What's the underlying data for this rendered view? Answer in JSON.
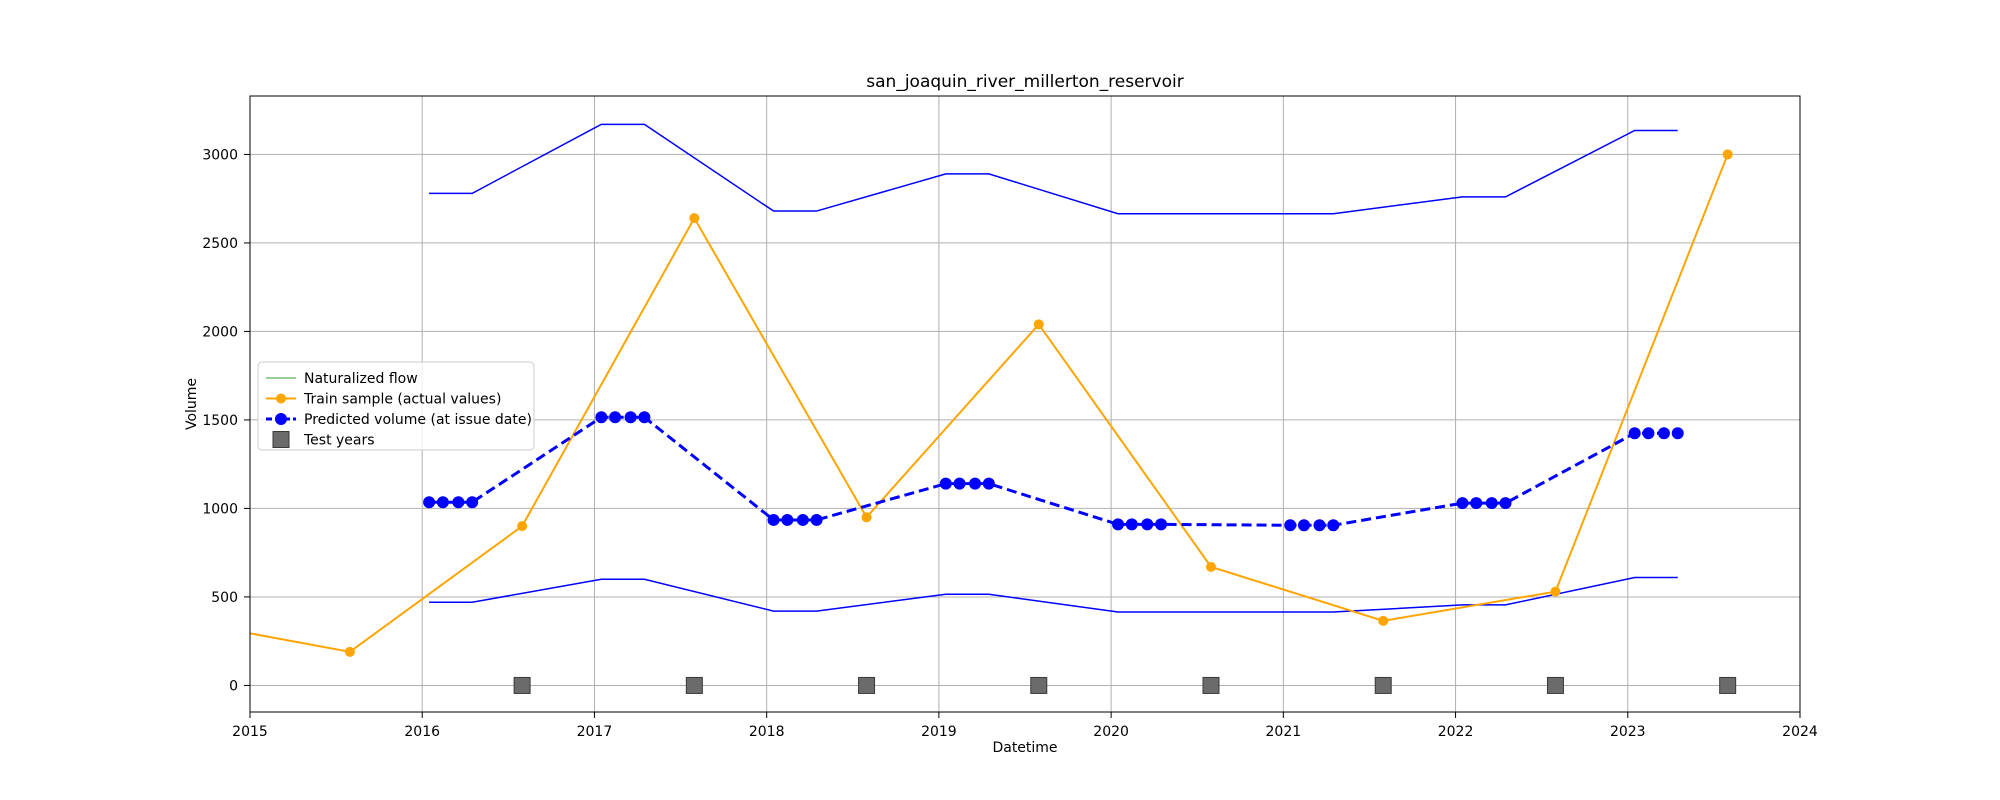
{
  "chart_data": {
    "type": "line",
    "title": "san_joaquin_river_millerton_reservoir",
    "xlabel": "Datetime",
    "ylabel": "Volume",
    "xlim": [
      2015,
      2024
    ],
    "ylim": [
      -150,
      3330
    ],
    "x_ticks": [
      2015,
      2016,
      2017,
      2018,
      2019,
      2020,
      2021,
      2022,
      2023,
      2024
    ],
    "y_ticks": [
      0,
      500,
      1000,
      1500,
      2000,
      2500,
      3000
    ],
    "grid": true,
    "legend_position": "center-left",
    "legend": [
      {
        "label": "Naturalized flow",
        "color": "#2ca02c",
        "style": "line"
      },
      {
        "label": "Train sample (actual values)",
        "color": "#ffa500",
        "style": "line-marker"
      },
      {
        "label": "Predicted volume (at issue date)",
        "color": "#0000ff",
        "style": "dashed-marker"
      },
      {
        "label": "Test years",
        "color": "#555555",
        "style": "square"
      }
    ],
    "series": [
      {
        "name": "Naturalized flow",
        "color": "#2ca02c",
        "x": [],
        "values": []
      },
      {
        "name": "Train sample (actual values)",
        "color": "#ffa500",
        "x": [
          2014.58,
          2015.58,
          2016.58,
          2017.58,
          2018.58,
          2019.58,
          2020.58,
          2021.58,
          2022.58,
          2023.58
        ],
        "values": [
          370,
          190,
          900,
          2640,
          950,
          2040,
          670,
          365,
          530,
          3000
        ]
      },
      {
        "name": "Predicted volume (at issue date)",
        "color": "#0000ff",
        "x": [
          2016.04,
          2016.12,
          2016.21,
          2016.29,
          2017.04,
          2017.12,
          2017.21,
          2017.29,
          2018.04,
          2018.12,
          2018.21,
          2018.29,
          2019.04,
          2019.12,
          2019.21,
          2019.29,
          2020.04,
          2020.12,
          2020.21,
          2020.29,
          2021.04,
          2021.12,
          2021.21,
          2021.29,
          2022.04,
          2022.12,
          2022.21,
          2022.29,
          2023.04,
          2023.12,
          2023.21,
          2023.29
        ],
        "values": [
          1035,
          1035,
          1035,
          1035,
          1515,
          1515,
          1515,
          1515,
          935,
          935,
          935,
          935,
          1140,
          1140,
          1140,
          1140,
          910,
          910,
          910,
          910,
          905,
          905,
          905,
          905,
          1030,
          1030,
          1030,
          1030,
          1425,
          1425,
          1425,
          1425
        ]
      },
      {
        "name": "Upper bound",
        "color": "#0000ff",
        "x": [
          2016.04,
          2016.29,
          2017.04,
          2017.29,
          2018.04,
          2018.29,
          2019.04,
          2019.29,
          2020.04,
          2020.29,
          2021.04,
          2021.29,
          2022.04,
          2022.29,
          2023.04,
          2023.29
        ],
        "values": [
          2780,
          2780,
          3170,
          3170,
          2680,
          2680,
          2890,
          2890,
          2665,
          2665,
          2665,
          2665,
          2760,
          2760,
          3135,
          3135
        ]
      },
      {
        "name": "Lower bound",
        "color": "#0000ff",
        "x": [
          2016.04,
          2016.29,
          2017.04,
          2017.29,
          2018.04,
          2018.29,
          2019.04,
          2019.29,
          2020.04,
          2020.29,
          2021.04,
          2021.29,
          2022.04,
          2022.29,
          2023.04,
          2023.29
        ],
        "values": [
          470,
          470,
          600,
          600,
          420,
          420,
          515,
          515,
          415,
          415,
          415,
          415,
          455,
          455,
          610,
          610
        ]
      },
      {
        "name": "Test years",
        "color": "#555555",
        "x": [
          2016.58,
          2017.58,
          2018.58,
          2019.58,
          2020.58,
          2021.58,
          2022.58,
          2023.58
        ],
        "values": [
          0,
          0,
          0,
          0,
          0,
          0,
          0,
          0
        ]
      }
    ]
  }
}
